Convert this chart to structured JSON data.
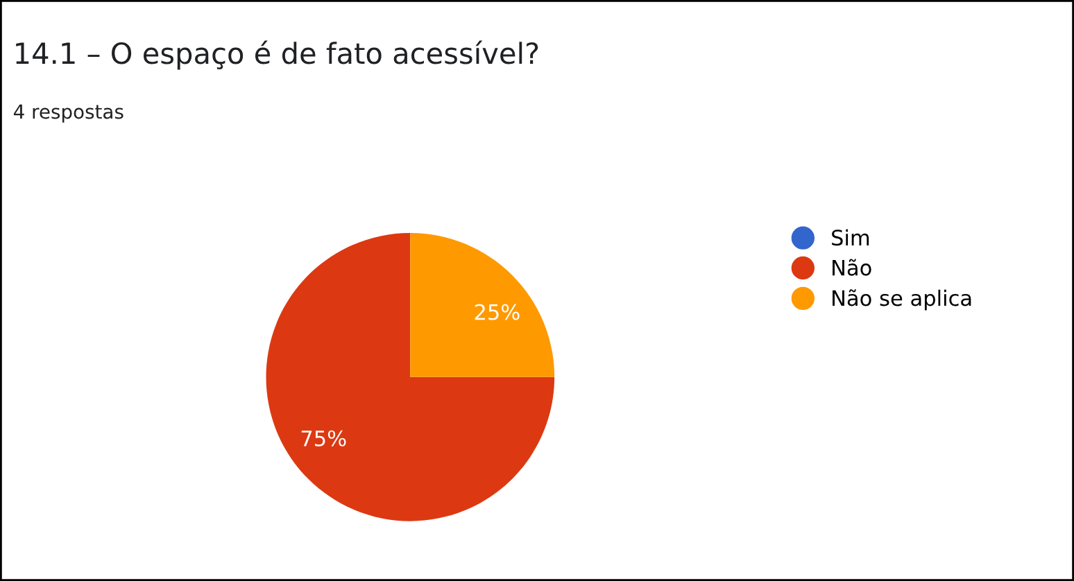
{
  "chart_data": {
    "type": "pie",
    "title": "14.1 – O espaço é de fato acessível?",
    "subtitle": "4 respostas",
    "categories": [
      "Sim",
      "Não",
      "Não se aplica"
    ],
    "values": [
      0,
      75,
      25
    ],
    "colors": [
      "#3366cc",
      "#dc3912",
      "#ff9900"
    ],
    "value_labels": [
      null,
      "75%",
      "25%"
    ],
    "legend": "right"
  }
}
